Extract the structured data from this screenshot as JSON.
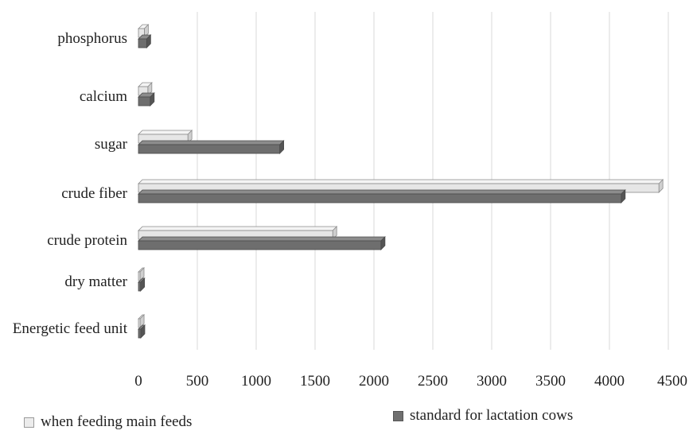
{
  "chart_data": {
    "type": "bar",
    "orientation": "horizontal",
    "categories": [
      "phosphorus",
      "calcium",
      "sugar",
      "crude fiber",
      "crude protein",
      "dry matter",
      "Energetic feed unit"
    ],
    "series": [
      {
        "name": "when feeding main feeds",
        "values": [
          50,
          80,
          420,
          4420,
          1650,
          12,
          14
        ],
        "color": "#e6e6e6"
      },
      {
        "name": "standard for lactation cows",
        "values": [
          70,
          100,
          1200,
          4100,
          2060,
          18,
          20
        ],
        "color": "#6e6e6e"
      }
    ],
    "xlim": [
      0,
      4500
    ],
    "xticks": [
      0,
      500,
      1000,
      1500,
      2000,
      2500,
      3000,
      3500,
      4000,
      4500
    ],
    "xtick_labels": [
      "0",
      "500",
      "1000",
      "1500",
      "2000",
      "2500",
      "3000",
      "3500",
      "4000",
      "4500"
    ],
    "grid": "vertical",
    "legend_position": "bottom"
  }
}
